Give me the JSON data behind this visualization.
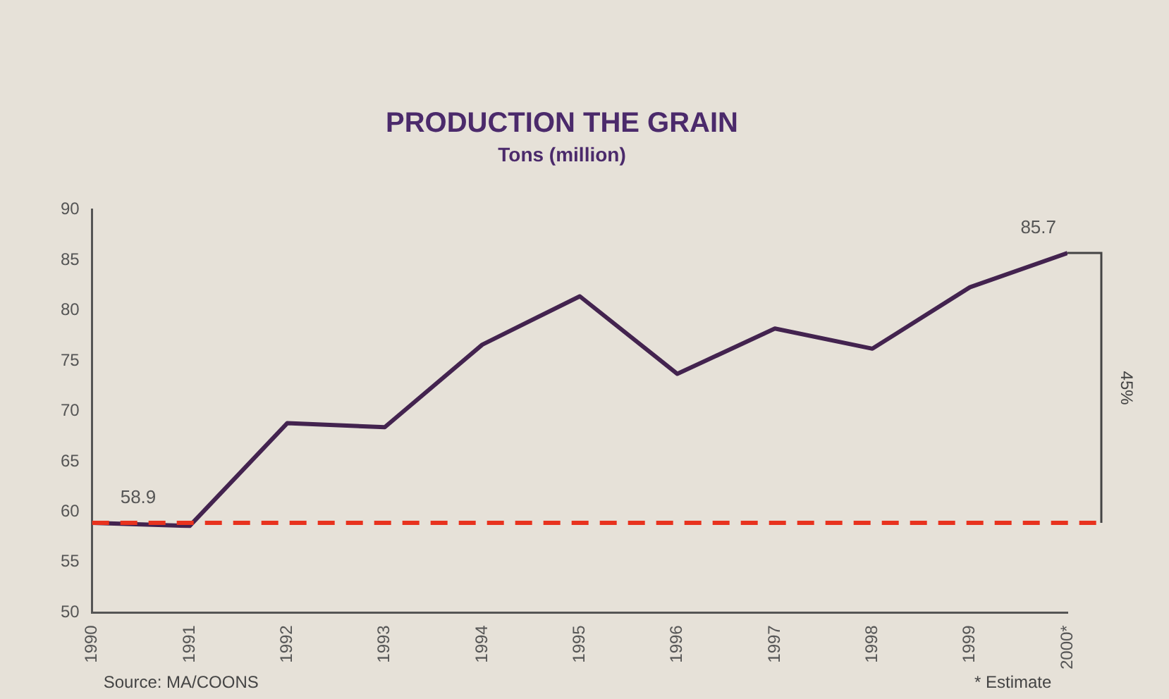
{
  "chart_data": {
    "type": "line",
    "title": "PRODUCTION THE GRAIN",
    "subtitle": "Tons (million)",
    "x": [
      1990,
      1991,
      1992,
      1993,
      1994,
      1995,
      1996,
      1997,
      1998,
      1999,
      2000
    ],
    "series": [
      {
        "color": "#43234f",
        "values": [
          58.9,
          58.6,
          68.8,
          68.4,
          76.6,
          81.4,
          73.7,
          78.2,
          76.2,
          82.3,
          85.7
        ],
        "value_labels": [
          "58.9",
          null,
          null,
          null,
          null,
          null,
          null,
          null,
          null,
          null,
          "85.7"
        ]
      }
    ],
    "xlim": [
      1990,
      2000
    ],
    "xticks": [
      1990,
      1991,
      1992,
      1993,
      1994,
      1995,
      1996,
      1997,
      1998,
      1999,
      {
        "value": 2000,
        "label": "2000*"
      }
    ],
    "ylim": [
      50,
      90
    ],
    "yticks": [
      50,
      55,
      60,
      65,
      70,
      75,
      80,
      85,
      90
    ],
    "ref_lines": [
      {
        "axis": "y",
        "value": 58.9,
        "color": "#e8321e",
        "line_style": "dashed"
      }
    ],
    "annotations": [
      "45%",
      "Source: MA/COONS",
      "* Estimate"
    ],
    "grid": false,
    "legend": false,
    "marker": "none",
    "line_style": "solid"
  }
}
